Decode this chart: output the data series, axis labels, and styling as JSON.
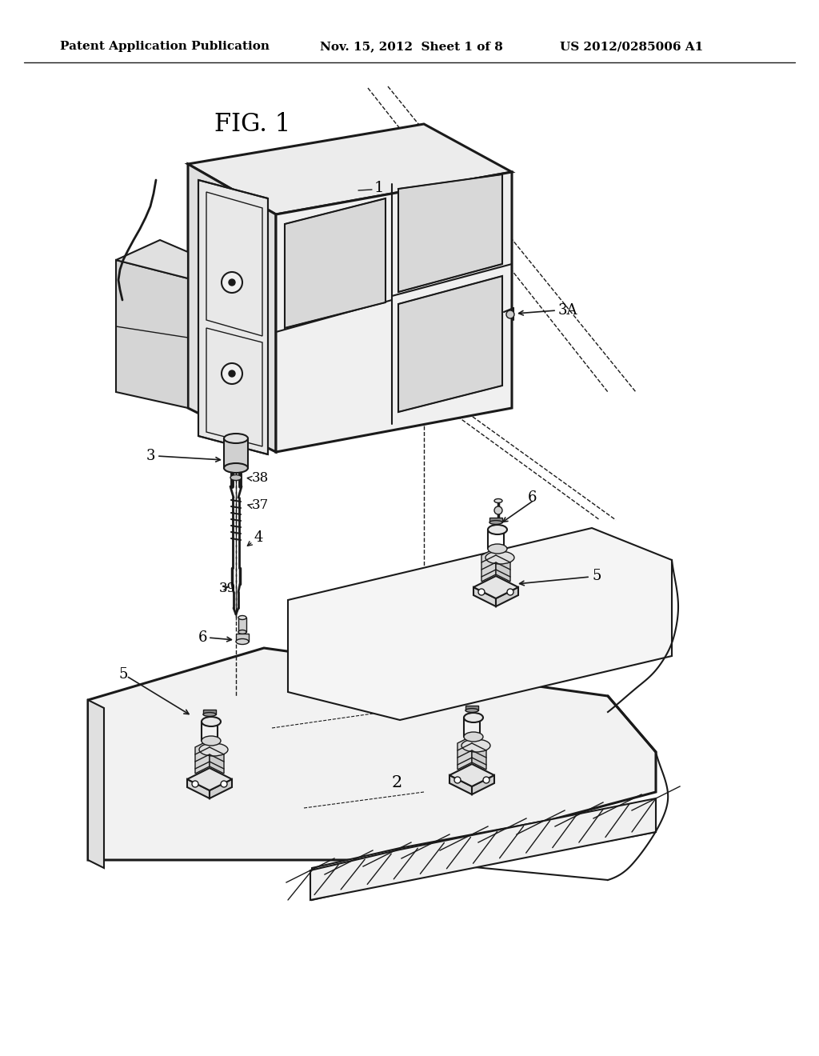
{
  "background_color": "#ffffff",
  "header_left": "Patent Application Publication",
  "header_center": "Nov. 15, 2012  Sheet 1 of 8",
  "header_right": "US 2012/0285006 A1",
  "fig_label": "FIG. 1",
  "line_color": "#1a1a1a",
  "text_color": "#000000",
  "header_fontsize": 11,
  "fig_label_fontsize": 22,
  "lw_thick": 2.2,
  "lw_med": 1.5,
  "lw_thin": 1.0
}
